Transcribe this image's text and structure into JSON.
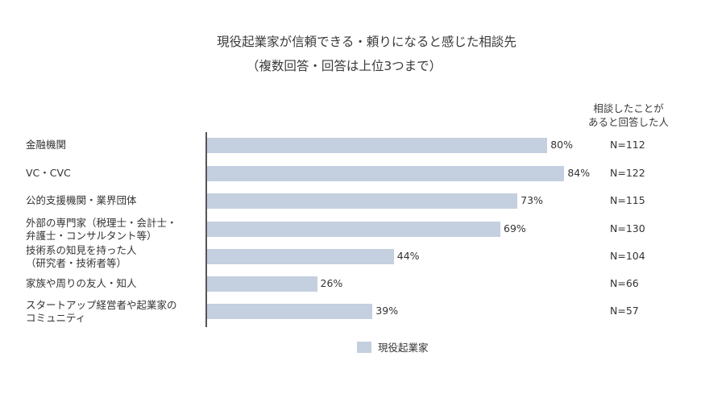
{
  "chart_data": {
    "type": "bar",
    "orientation": "horizontal",
    "title": "現役起業家が信頼できる・頼りになると感じた相談先",
    "subtitle": "（複数回答・回答は上位3つまで）",
    "categories": [
      "金融機関",
      "VC・CVC",
      "公的支援機関・業界団体",
      "外部の専門家（税理士・会計士・弁護士・コンサルタント等）",
      "技術系の知見を持った人（研究者・技術者等）",
      "家族や周りの友人・知人",
      "スタートアップ経営者や起業家のコミュニティ"
    ],
    "series": [
      {
        "name": "現役起業家",
        "color": "#c4cfdf",
        "values": [
          80,
          84,
          73,
          69,
          44,
          26,
          39
        ]
      }
    ],
    "value_labels": [
      "80%",
      "84%",
      "73%",
      "69%",
      "44%",
      "26%",
      "39%"
    ],
    "n_column_header": "相談したことがあると回答した人",
    "n_values": [
      "N=112",
      "N=122",
      "N=115",
      "N=130",
      "N=104",
      "N=66",
      "N=57"
    ],
    "xlabel": "",
    "ylabel": "",
    "xlim": [
      0,
      100
    ],
    "grid": false,
    "legend_position": "bottom"
  },
  "title": {
    "line1": "現役起業家が信頼できる・頼りになると感じた相談先",
    "line2": "（複数回答・回答は上位3つまで）"
  },
  "n_header": {
    "line1": "相談したことが",
    "line2": "あると回答した人"
  },
  "rows": [
    {
      "label_lines": [
        "金融機関"
      ],
      "value": 80,
      "value_label": "80%",
      "n": "N=112"
    },
    {
      "label_lines": [
        "VC・CVC"
      ],
      "value": 84,
      "value_label": "84%",
      "n": "N=122"
    },
    {
      "label_lines": [
        "公的支援機関・業界団体"
      ],
      "value": 73,
      "value_label": "73%",
      "n": "N=115"
    },
    {
      "label_lines": [
        "外部の専門家（税理士・会計士・",
        "弁護士・コンサルタント等）"
      ],
      "value": 69,
      "value_label": "69%",
      "n": "N=130"
    },
    {
      "label_lines": [
        "技術系の知見を持った人",
        "（研究者・技術者等）"
      ],
      "value": 44,
      "value_label": "44%",
      "n": "N=104"
    },
    {
      "label_lines": [
        "家族や周りの友人・知人"
      ],
      "value": 26,
      "value_label": "26%",
      "n": "N=66"
    },
    {
      "label_lines": [
        "スタートアップ経営者や起業家の",
        "コミュニティ"
      ],
      "value": 39,
      "value_label": "39%",
      "n": "N=57"
    }
  ],
  "legend": {
    "label": "現役起業家",
    "color": "#c4cfdf"
  }
}
